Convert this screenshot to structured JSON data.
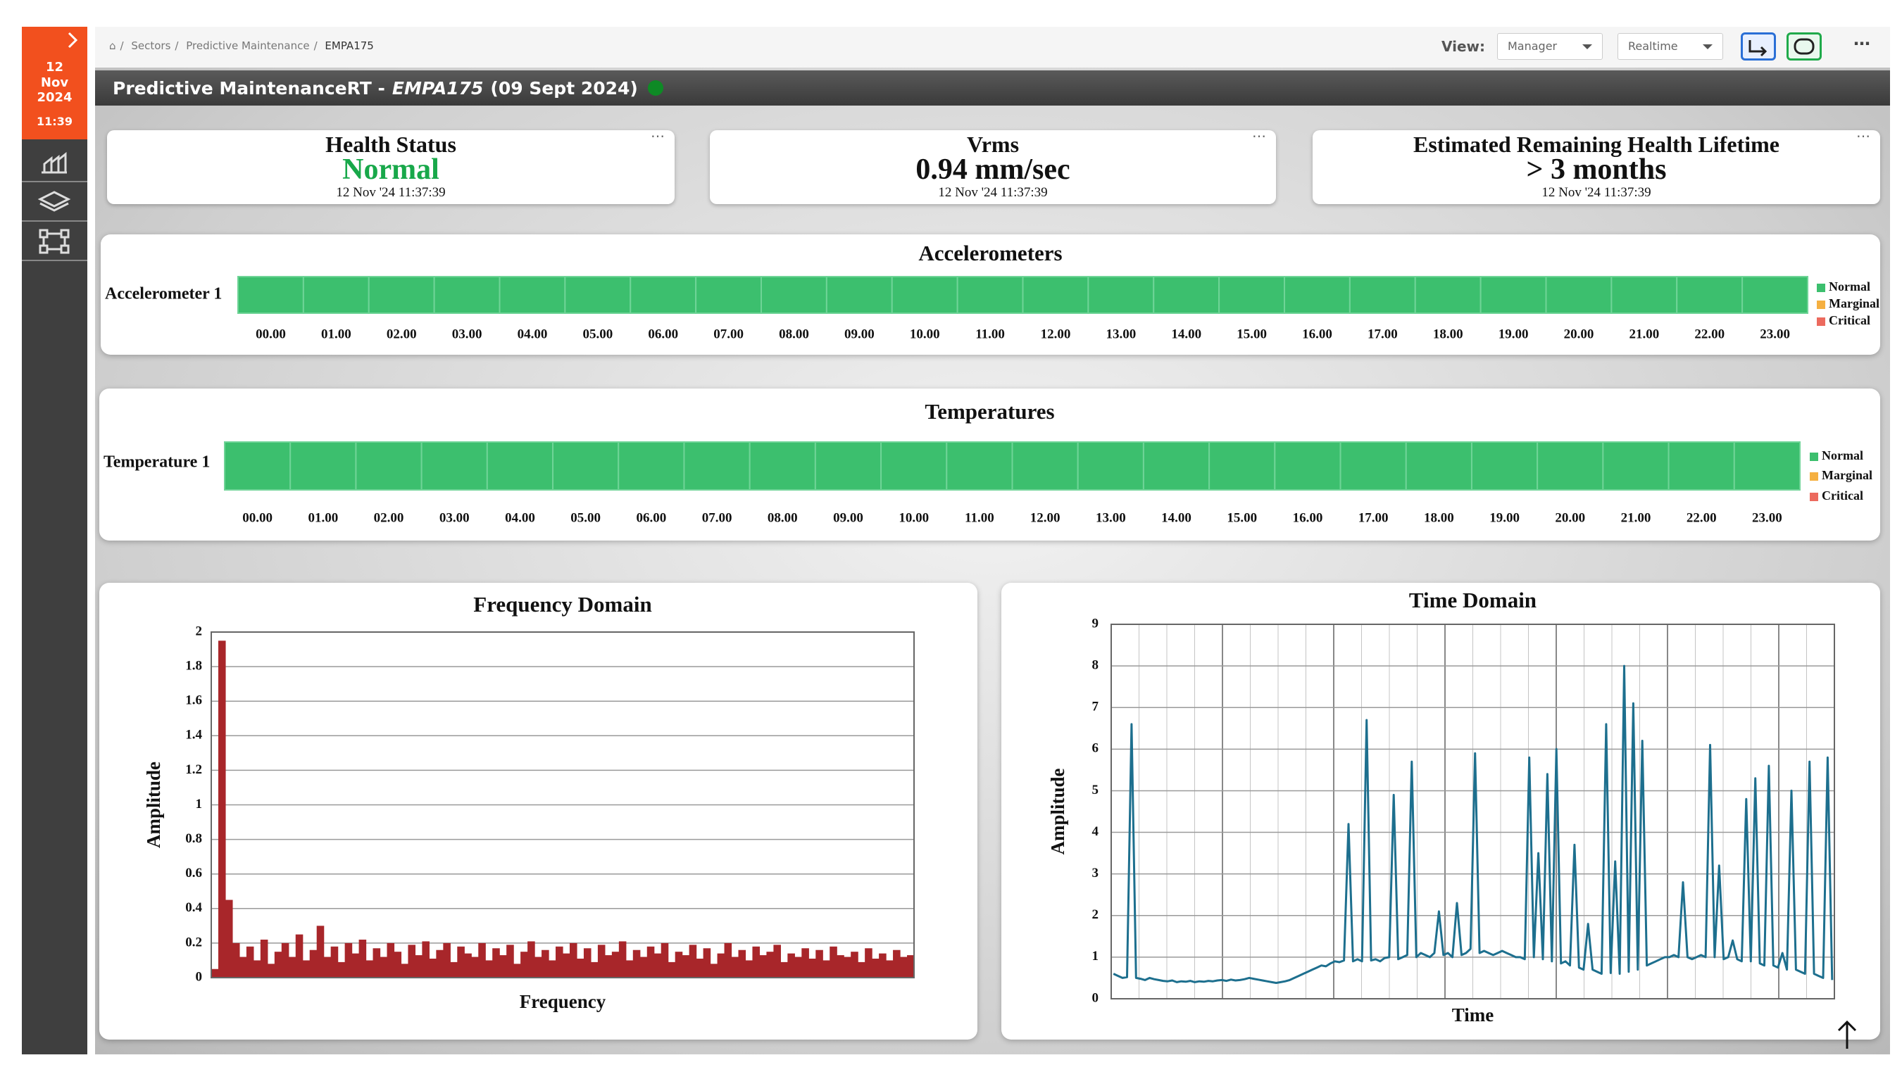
{
  "sidebar": {
    "day": "12",
    "month": "Nov",
    "year": "2024",
    "time": "11:39"
  },
  "breadcrumb": [
    "Sectors",
    "Predictive Maintenance",
    "EMPA175"
  ],
  "toolbar": {
    "view_label": "View:",
    "role": "Manager",
    "mode": "Realtime"
  },
  "header": {
    "title": "Predictive MaintenanceRT -",
    "asset": "EMPA175",
    "date": "(09 Sept 2024)"
  },
  "cards": [
    {
      "title": "Health Status",
      "value": "Normal",
      "value_color": "#18a84a",
      "timestamp": "12 Nov '24 11:37:39"
    },
    {
      "title": "Vrms",
      "value": "0.94 mm/sec",
      "value_color": "#111111",
      "timestamp": "12 Nov '24 11:37:39"
    },
    {
      "title": "Estimated Remaining Health Lifetime",
      "value": "> 3 months",
      "value_color": "#111111",
      "timestamp": "12 Nov '24 11:37:39"
    }
  ],
  "status_panels": [
    {
      "title": "Accelerometers",
      "row": "Accelerometer 1",
      "hours": [
        "00.00",
        "01.00",
        "02.00",
        "03.00",
        "04.00",
        "05.00",
        "06.00",
        "07.00",
        "08.00",
        "09.00",
        "10.00",
        "11.00",
        "12.00",
        "13.00",
        "14.00",
        "15.00",
        "16.00",
        "17.00",
        "18.00",
        "19.00",
        "20.00",
        "21.00",
        "22.00",
        "23.00"
      ],
      "cells": [
        "Normal",
        "Normal",
        "Normal",
        "Normal",
        "Normal",
        "Normal",
        "Normal",
        "Normal",
        "Normal",
        "Normal",
        "Normal",
        "Normal",
        "Normal",
        "Normal",
        "Normal",
        "Normal",
        "Normal",
        "Normal",
        "Normal",
        "Normal",
        "Normal",
        "Normal",
        "Normal",
        "Normal"
      ],
      "legend": [
        {
          "name": "Normal",
          "color": "#3cbf6e"
        },
        {
          "name": "Marginal",
          "color": "#f5b041"
        },
        {
          "name": "Critical",
          "color": "#ec6a5e"
        }
      ]
    },
    {
      "title": "Temperatures",
      "row": "Temperature 1",
      "hours": [
        "00.00",
        "01.00",
        "02.00",
        "03.00",
        "04.00",
        "05.00",
        "06.00",
        "07.00",
        "08.00",
        "09.00",
        "10.00",
        "11.00",
        "12.00",
        "13.00",
        "14.00",
        "15.00",
        "16.00",
        "17.00",
        "18.00",
        "19.00",
        "20.00",
        "21.00",
        "22.00",
        "23.00"
      ],
      "cells": [
        "Normal",
        "Normal",
        "Normal",
        "Normal",
        "Normal",
        "Normal",
        "Normal",
        "Normal",
        "Normal",
        "Normal",
        "Normal",
        "Normal",
        "Normal",
        "Normal",
        "Normal",
        "Normal",
        "Normal",
        "Normal",
        "Normal",
        "Normal",
        "Normal",
        "Normal",
        "Normal",
        "Normal"
      ],
      "legend": [
        {
          "name": "Normal",
          "color": "#3cbf6e"
        },
        {
          "name": "Marginal",
          "color": "#f5b041"
        },
        {
          "name": "Critical",
          "color": "#ec6a5e"
        }
      ]
    }
  ],
  "chart_data": [
    {
      "type": "bar",
      "title": "Frequency Domain",
      "x_label": "Frequency",
      "y_label": "Amplitude",
      "color": "#a8262a",
      "grid": true,
      "ylim": [
        0,
        2
      ],
      "yticks": [
        0,
        0.2,
        0.4,
        0.6,
        0.8,
        1,
        1.2,
        1.4,
        1.6,
        1.8,
        2
      ],
      "values": [
        0.05,
        1.95,
        0.45,
        0.2,
        0.12,
        0.18,
        0.1,
        0.22,
        0.08,
        0.15,
        0.2,
        0.12,
        0.25,
        0.1,
        0.16,
        0.3,
        0.12,
        0.18,
        0.09,
        0.2,
        0.14,
        0.22,
        0.1,
        0.17,
        0.12,
        0.2,
        0.15,
        0.08,
        0.19,
        0.13,
        0.21,
        0.11,
        0.16,
        0.2,
        0.09,
        0.18,
        0.14,
        0.12,
        0.2,
        0.1,
        0.17,
        0.13,
        0.19,
        0.08,
        0.15,
        0.21,
        0.12,
        0.16,
        0.1,
        0.18,
        0.14,
        0.2,
        0.11,
        0.17,
        0.09,
        0.19,
        0.13,
        0.15,
        0.21,
        0.1,
        0.16,
        0.12,
        0.18,
        0.14,
        0.2,
        0.09,
        0.15,
        0.13,
        0.19,
        0.11,
        0.17,
        0.08,
        0.14,
        0.2,
        0.12,
        0.16,
        0.1,
        0.18,
        0.13,
        0.15,
        0.19,
        0.09,
        0.14,
        0.12,
        0.17,
        0.11,
        0.16,
        0.1,
        0.18,
        0.13,
        0.12,
        0.15,
        0.09,
        0.17,
        0.11,
        0.14,
        0.1,
        0.16,
        0.12,
        0.13
      ]
    },
    {
      "type": "line",
      "title": "Time Domain",
      "x_label": "Time",
      "y_label": "Amplitude",
      "color": "#1d6f8e",
      "grid": true,
      "ylim": [
        0,
        9
      ],
      "yticks": [
        0,
        1,
        2,
        3,
        4,
        5,
        6,
        7,
        8,
        9
      ],
      "values": [
        0.6,
        0.55,
        0.5,
        0.52,
        6.6,
        0.5,
        0.48,
        0.45,
        0.5,
        0.47,
        0.45,
        0.43,
        0.42,
        0.44,
        0.4,
        0.42,
        0.41,
        0.43,
        0.4,
        0.42,
        0.41,
        0.43,
        0.42,
        0.44,
        0.45,
        0.43,
        0.46,
        0.44,
        0.45,
        0.47,
        0.5,
        0.48,
        0.46,
        0.44,
        0.42,
        0.4,
        0.38,
        0.4,
        0.42,
        0.45,
        0.5,
        0.55,
        0.6,
        0.65,
        0.7,
        0.75,
        0.8,
        0.78,
        0.85,
        0.9,
        0.88,
        0.92,
        4.2,
        0.9,
        0.95,
        0.9,
        6.7,
        0.92,
        0.95,
        0.9,
        0.98,
        1.0,
        4.9,
        0.95,
        1.0,
        1.05,
        5.7,
        1.0,
        1.1,
        1.05,
        1.0,
        1.1,
        2.1,
        1.05,
        1.1,
        1.0,
        2.3,
        1.05,
        1.1,
        1.2,
        5.9,
        1.1,
        1.15,
        1.1,
        1.05,
        1.1,
        1.15,
        1.1,
        1.05,
        1.0,
        1.0,
        0.95,
        5.8,
        1.0,
        3.5,
        0.95,
        5.4,
        0.9,
        6.0,
        0.85,
        0.9,
        0.8,
        3.7,
        0.75,
        0.7,
        1.8,
        0.7,
        0.65,
        0.6,
        6.6,
        0.62,
        3.3,
        0.6,
        8.0,
        0.65,
        7.1,
        0.7,
        6.2,
        0.8,
        0.85,
        0.9,
        0.95,
        1.0,
        1.0,
        1.05,
        1.0,
        2.8,
        1.0,
        0.95,
        1.0,
        1.05,
        1.0,
        6.1,
        1.0,
        3.2,
        0.95,
        1.0,
        1.4,
        0.95,
        0.9,
        4.8,
        0.9,
        5.3,
        0.85,
        0.8,
        5.6,
        0.8,
        0.75,
        1.1,
        0.7,
        5.0,
        0.7,
        0.65,
        0.6,
        5.7,
        0.6,
        0.55,
        0.5,
        5.8,
        0.45
      ]
    }
  ]
}
